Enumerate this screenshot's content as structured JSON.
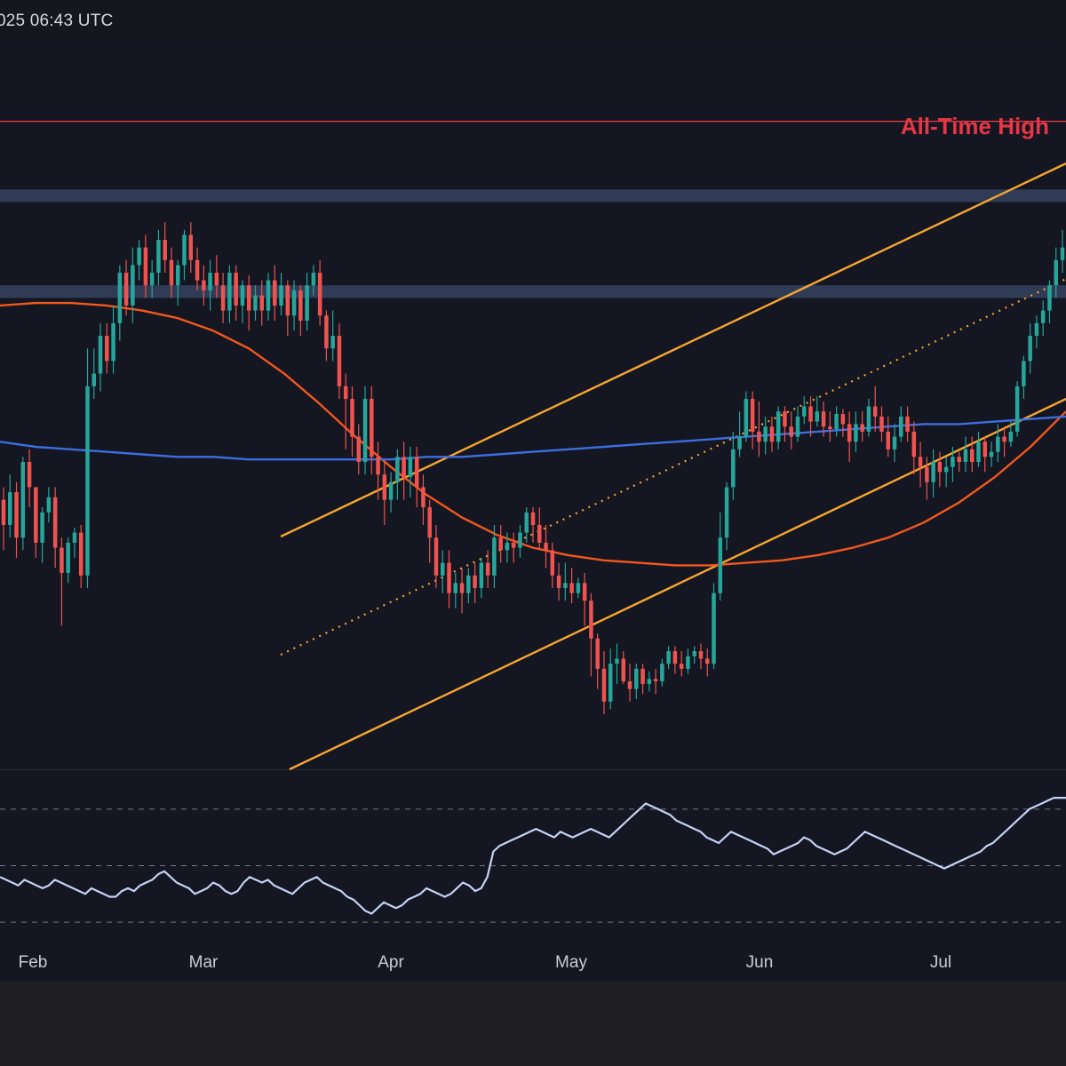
{
  "header": {
    "timestamp": "025 06:43 UTC"
  },
  "colors": {
    "background": "#141621",
    "up": "#26a69a",
    "down": "#ef5350",
    "ath": "#e63746",
    "zone": "#35435e",
    "channel": "#f7a531",
    "ma_blue": "#3d6ee0",
    "ma_orange": "#f2571e",
    "rsi": "#c5d3f5"
  },
  "annotations": {
    "ath_label": "All-Time High"
  },
  "chart_data": {
    "type": "candlestick",
    "x_labels": [
      "Feb",
      "Mar",
      "Apr",
      "May",
      "Jun",
      "Jul"
    ],
    "grid": false,
    "legend": "none",
    "candles": [
      [
        355,
        345,
        335,
        360
      ],
      [
        345,
        358,
        340,
        365
      ],
      [
        358,
        340,
        332,
        362
      ],
      [
        340,
        370,
        335,
        372
      ],
      [
        370,
        360,
        352,
        375
      ],
      [
        360,
        338,
        332,
        360
      ],
      [
        338,
        350,
        330,
        352
      ],
      [
        350,
        356,
        346,
        360
      ],
      [
        356,
        336,
        328,
        360
      ],
      [
        336,
        326,
        305,
        340
      ],
      [
        326,
        338,
        322,
        340
      ],
      [
        338,
        342,
        332,
        344
      ],
      [
        342,
        325,
        320,
        345
      ],
      [
        325,
        400,
        320,
        415
      ],
      [
        400,
        405,
        395,
        415
      ],
      [
        405,
        420,
        398,
        425
      ],
      [
        420,
        410,
        405,
        425
      ],
      [
        410,
        425,
        405,
        432
      ],
      [
        425,
        445,
        418,
        448
      ],
      [
        445,
        432,
        428,
        450
      ],
      [
        432,
        448,
        425,
        455
      ],
      [
        448,
        455,
        442,
        458
      ],
      [
        455,
        440,
        435,
        460
      ],
      [
        440,
        445,
        435,
        450
      ],
      [
        445,
        458,
        440,
        462
      ],
      [
        458,
        450,
        445,
        465
      ],
      [
        450,
        440,
        435,
        455
      ],
      [
        440,
        448,
        432,
        450
      ],
      [
        448,
        460,
        442,
        462
      ],
      [
        460,
        450,
        445,
        465
      ],
      [
        450,
        442,
        438,
        455
      ],
      [
        442,
        438,
        432,
        448
      ],
      [
        438,
        445,
        430,
        450
      ],
      [
        445,
        440,
        435,
        452
      ],
      [
        440,
        430,
        425,
        445
      ],
      [
        430,
        445,
        425,
        448
      ],
      [
        445,
        432,
        426,
        448
      ],
      [
        432,
        440,
        425,
        442
      ],
      [
        440,
        430,
        422,
        444
      ],
      [
        430,
        436,
        426,
        440
      ],
      [
        436,
        430,
        424,
        442
      ],
      [
        430,
        442,
        426,
        445
      ],
      [
        442,
        432,
        426,
        448
      ],
      [
        432,
        440,
        428,
        445
      ],
      [
        440,
        428,
        420,
        442
      ],
      [
        428,
        438,
        422,
        442
      ],
      [
        438,
        426,
        420,
        440
      ],
      [
        426,
        440,
        422,
        445
      ],
      [
        440,
        445,
        436,
        448
      ],
      [
        445,
        428,
        424,
        450
      ],
      [
        428,
        415,
        410,
        430
      ],
      [
        415,
        420,
        410,
        430
      ],
      [
        420,
        400,
        395,
        425
      ],
      [
        400,
        395,
        375,
        405
      ],
      [
        395,
        380,
        372,
        400
      ],
      [
        380,
        370,
        365,
        385
      ],
      [
        370,
        395,
        365,
        400
      ],
      [
        395,
        372,
        365,
        400
      ],
      [
        372,
        365,
        355,
        378
      ],
      [
        365,
        355,
        345,
        370
      ],
      [
        355,
        362,
        350,
        366
      ],
      [
        362,
        372,
        355,
        375
      ],
      [
        372,
        364,
        355,
        378
      ],
      [
        364,
        372,
        356,
        376
      ],
      [
        372,
        360,
        352,
        376
      ],
      [
        360,
        352,
        345,
        365
      ],
      [
        352,
        340,
        330,
        355
      ],
      [
        340,
        325,
        320,
        345
      ],
      [
        325,
        330,
        318,
        335
      ],
      [
        330,
        318,
        312,
        335
      ],
      [
        318,
        322,
        312,
        326
      ],
      [
        322,
        318,
        310,
        328
      ],
      [
        318,
        325,
        314,
        328
      ],
      [
        325,
        320,
        314,
        330
      ],
      [
        320,
        330,
        316,
        332
      ],
      [
        330,
        325,
        320,
        335
      ],
      [
        325,
        340,
        320,
        345
      ],
      [
        340,
        335,
        330,
        345
      ],
      [
        335,
        338,
        330,
        342
      ],
      [
        338,
        336,
        330,
        342
      ],
      [
        336,
        342,
        332,
        345
      ],
      [
        342,
        350,
        338,
        352
      ],
      [
        350,
        345,
        338,
        352
      ],
      [
        345,
        338,
        335,
        352
      ],
      [
        338,
        335,
        328,
        345
      ],
      [
        335,
        325,
        320,
        338
      ],
      [
        325,
        320,
        315,
        330
      ],
      [
        320,
        322,
        315,
        330
      ],
      [
        322,
        318,
        314,
        328
      ],
      [
        318,
        322,
        316,
        324
      ],
      [
        322,
        315,
        305,
        326
      ],
      [
        315,
        300,
        285,
        318
      ],
      [
        300,
        288,
        280,
        302
      ],
      [
        288,
        275,
        270,
        295
      ],
      [
        275,
        290,
        272,
        296
      ],
      [
        290,
        292,
        282,
        298
      ],
      [
        292,
        283,
        282,
        295
      ],
      [
        283,
        280,
        275,
        290
      ],
      [
        280,
        288,
        276,
        290
      ],
      [
        288,
        282,
        278,
        290
      ],
      [
        282,
        284,
        279,
        287
      ],
      [
        284,
        283,
        278,
        288
      ],
      [
        283,
        290,
        281,
        292
      ],
      [
        290,
        295,
        288,
        297
      ],
      [
        295,
        290,
        286,
        297
      ],
      [
        290,
        288,
        285,
        295
      ],
      [
        288,
        293,
        286,
        296
      ],
      [
        293,
        295,
        290,
        297
      ],
      [
        295,
        292,
        288,
        298
      ],
      [
        292,
        290,
        285,
        296
      ],
      [
        290,
        318,
        288,
        322
      ],
      [
        318,
        340,
        315,
        350
      ],
      [
        340,
        360,
        335,
        362
      ],
      [
        360,
        375,
        355,
        382
      ],
      [
        375,
        380,
        372,
        390
      ],
      [
        380,
        395,
        378,
        398
      ],
      [
        395,
        382,
        375,
        398
      ],
      [
        382,
        378,
        372,
        394
      ],
      [
        378,
        384,
        373,
        388
      ],
      [
        384,
        378,
        374,
        388
      ],
      [
        378,
        390,
        375,
        392
      ],
      [
        390,
        384,
        378,
        392
      ],
      [
        384,
        380,
        375,
        390
      ],
      [
        380,
        388,
        378,
        392
      ],
      [
        388,
        392,
        385,
        396
      ],
      [
        392,
        386,
        380,
        396
      ],
      [
        386,
        390,
        384,
        396
      ],
      [
        390,
        384,
        380,
        394
      ],
      [
        384,
        383,
        378,
        390
      ],
      [
        383,
        389,
        380,
        392
      ],
      [
        389,
        385,
        380,
        391
      ],
      [
        385,
        378,
        370,
        390
      ],
      [
        378,
        385,
        374,
        390
      ],
      [
        385,
        382,
        378,
        390
      ],
      [
        382,
        392,
        380,
        395
      ],
      [
        392,
        388,
        382,
        400
      ],
      [
        388,
        382,
        378,
        392
      ],
      [
        382,
        375,
        372,
        388
      ],
      [
        375,
        380,
        370,
        385
      ],
      [
        380,
        388,
        378,
        392
      ],
      [
        388,
        382,
        378,
        392
      ],
      [
        382,
        372,
        365,
        386
      ],
      [
        372,
        368,
        360,
        378
      ],
      [
        368,
        362,
        355,
        372
      ],
      [
        362,
        370,
        356,
        375
      ],
      [
        370,
        366,
        360,
        374
      ],
      [
        366,
        368,
        360,
        372
      ],
      [
        368,
        372,
        362,
        376
      ],
      [
        372,
        370,
        366,
        374
      ],
      [
        370,
        375,
        366,
        380
      ],
      [
        375,
        370,
        366,
        380
      ],
      [
        370,
        378,
        368,
        382
      ],
      [
        378,
        372,
        366,
        380
      ],
      [
        372,
        374,
        368,
        378
      ],
      [
        374,
        380,
        370,
        385
      ],
      [
        380,
        378,
        372,
        384
      ],
      [
        378,
        382,
        376,
        386
      ],
      [
        382,
        400,
        380,
        402
      ],
      [
        400,
        410,
        395,
        412
      ],
      [
        410,
        420,
        405,
        425
      ],
      [
        420,
        425,
        415,
        428
      ],
      [
        425,
        430,
        420,
        434
      ],
      [
        430,
        440,
        425,
        442
      ],
      [
        440,
        450,
        435,
        455
      ],
      [
        450,
        455,
        445,
        462
      ]
    ],
    "ma_blue": [
      378,
      376,
      375,
      374,
      373,
      372,
      372,
      371,
      371,
      371,
      371,
      371,
      372,
      372,
      373,
      374,
      375,
      376,
      377,
      378,
      379,
      380,
      381,
      382,
      383,
      384,
      385,
      385,
      386,
      387,
      388
    ],
    "ma_orange": [
      432,
      433,
      433,
      432,
      430,
      427,
      422,
      415,
      405,
      393,
      380,
      368,
      357,
      348,
      341,
      336,
      333,
      331,
      330,
      329,
      329,
      330,
      331,
      333,
      336,
      340,
      346,
      354,
      364,
      376,
      390
    ],
    "ath_level": 505,
    "resistance_zones": [
      [
        473,
        478
      ],
      [
        435,
        440
      ]
    ],
    "rsi": [
      46,
      45,
      44,
      43,
      45,
      44,
      43,
      42,
      43,
      45,
      44,
      43,
      42,
      41,
      40,
      42,
      41,
      40,
      39,
      39,
      41,
      42,
      41,
      43,
      44,
      45,
      47,
      48,
      46,
      44,
      43,
      42,
      40,
      41,
      42,
      44,
      43,
      41,
      40,
      41,
      44,
      46,
      45,
      44,
      45,
      43,
      42,
      41,
      40,
      42,
      44,
      45,
      46,
      44,
      43,
      42,
      41,
      39,
      38,
      36,
      34,
      33,
      35,
      37,
      36,
      35,
      36,
      38,
      39,
      40,
      42,
      41,
      40,
      39,
      40,
      42,
      44,
      43,
      41,
      42,
      46,
      55,
      57,
      58,
      59,
      60,
      61,
      62,
      63,
      62,
      61,
      60,
      62,
      61,
      60,
      61,
      62,
      63,
      62,
      61,
      60,
      62,
      64,
      66,
      68,
      70,
      72,
      71,
      70,
      69,
      68,
      66,
      65,
      64,
      63,
      62,
      60,
      59,
      58,
      60,
      62,
      61,
      60,
      59,
      58,
      57,
      56,
      54,
      55,
      56,
      57,
      58,
      60,
      59,
      57,
      56,
      55,
      54,
      55,
      56,
      58,
      60,
      62,
      61,
      60,
      59,
      58,
      57,
      56,
      55,
      54,
      53,
      52,
      51,
      50,
      49,
      50,
      51,
      52,
      53,
      54,
      55,
      57,
      58,
      60,
      62,
      64,
      66,
      68,
      70,
      71,
      72,
      73,
      74,
      74,
      74
    ],
    "rsi_levels": [
      70,
      50,
      30
    ]
  }
}
